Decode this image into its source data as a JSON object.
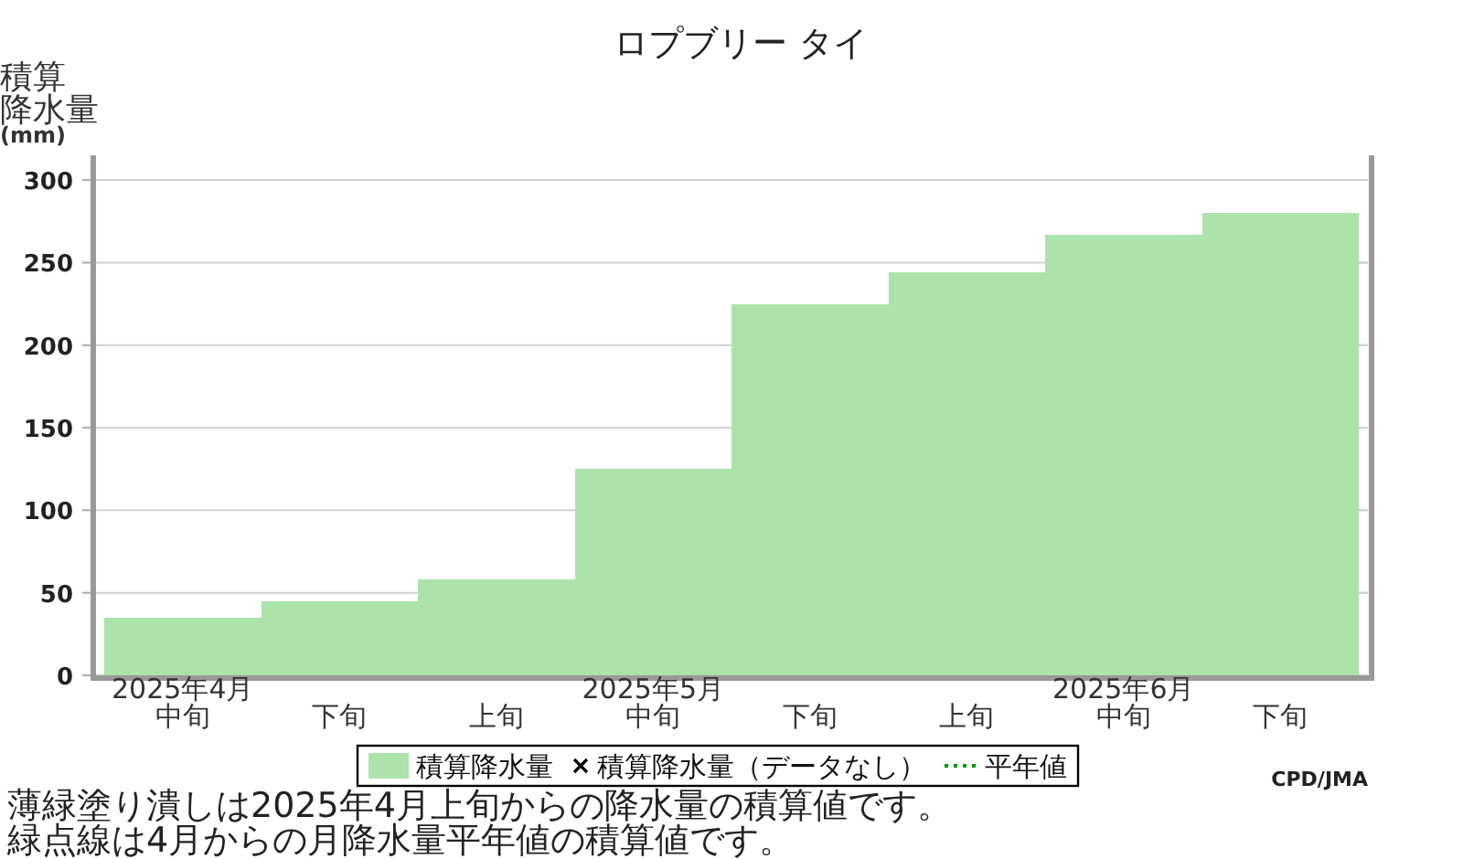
{
  "chart_data": {
    "type": "bar",
    "title": "ロプブリー タイ",
    "ylabel": "積算降水量(mm)",
    "categories": [
      "2025年4月中旬",
      "下旬",
      "上旬",
      "2025年5月中旬",
      "下旬",
      "上旬",
      "2025年6月中旬",
      "下旬"
    ],
    "series": [
      {
        "name": "積算降水量",
        "color": "#abe3aa",
        "values": [
          35,
          45,
          58,
          125,
          225,
          244,
          267,
          280
        ]
      },
      {
        "name": "積算降水量（データなし）",
        "type": "scatter",
        "marker": "cross",
        "color": "#000000",
        "values": [
          null,
          null,
          null,
          null,
          null,
          null,
          null,
          null
        ]
      },
      {
        "name": "平年値",
        "type": "line",
        "line_style": "dotted",
        "color": "#009900",
        "values": [
          null,
          null,
          null,
          null,
          null,
          null,
          null,
          null
        ]
      }
    ],
    "ylim": [
      0,
      315
    ],
    "yticks": [
      0,
      50,
      100,
      150,
      200,
      250,
      300
    ],
    "grid": "y",
    "legend": "bottom",
    "annotations": [
      "CPD/JMA",
      "薄緑塗り潰しは2025年4月上旬からの降水量の積算値です。",
      "緑点線は4月からの月降水量平年値の積算値です。"
    ]
  }
}
